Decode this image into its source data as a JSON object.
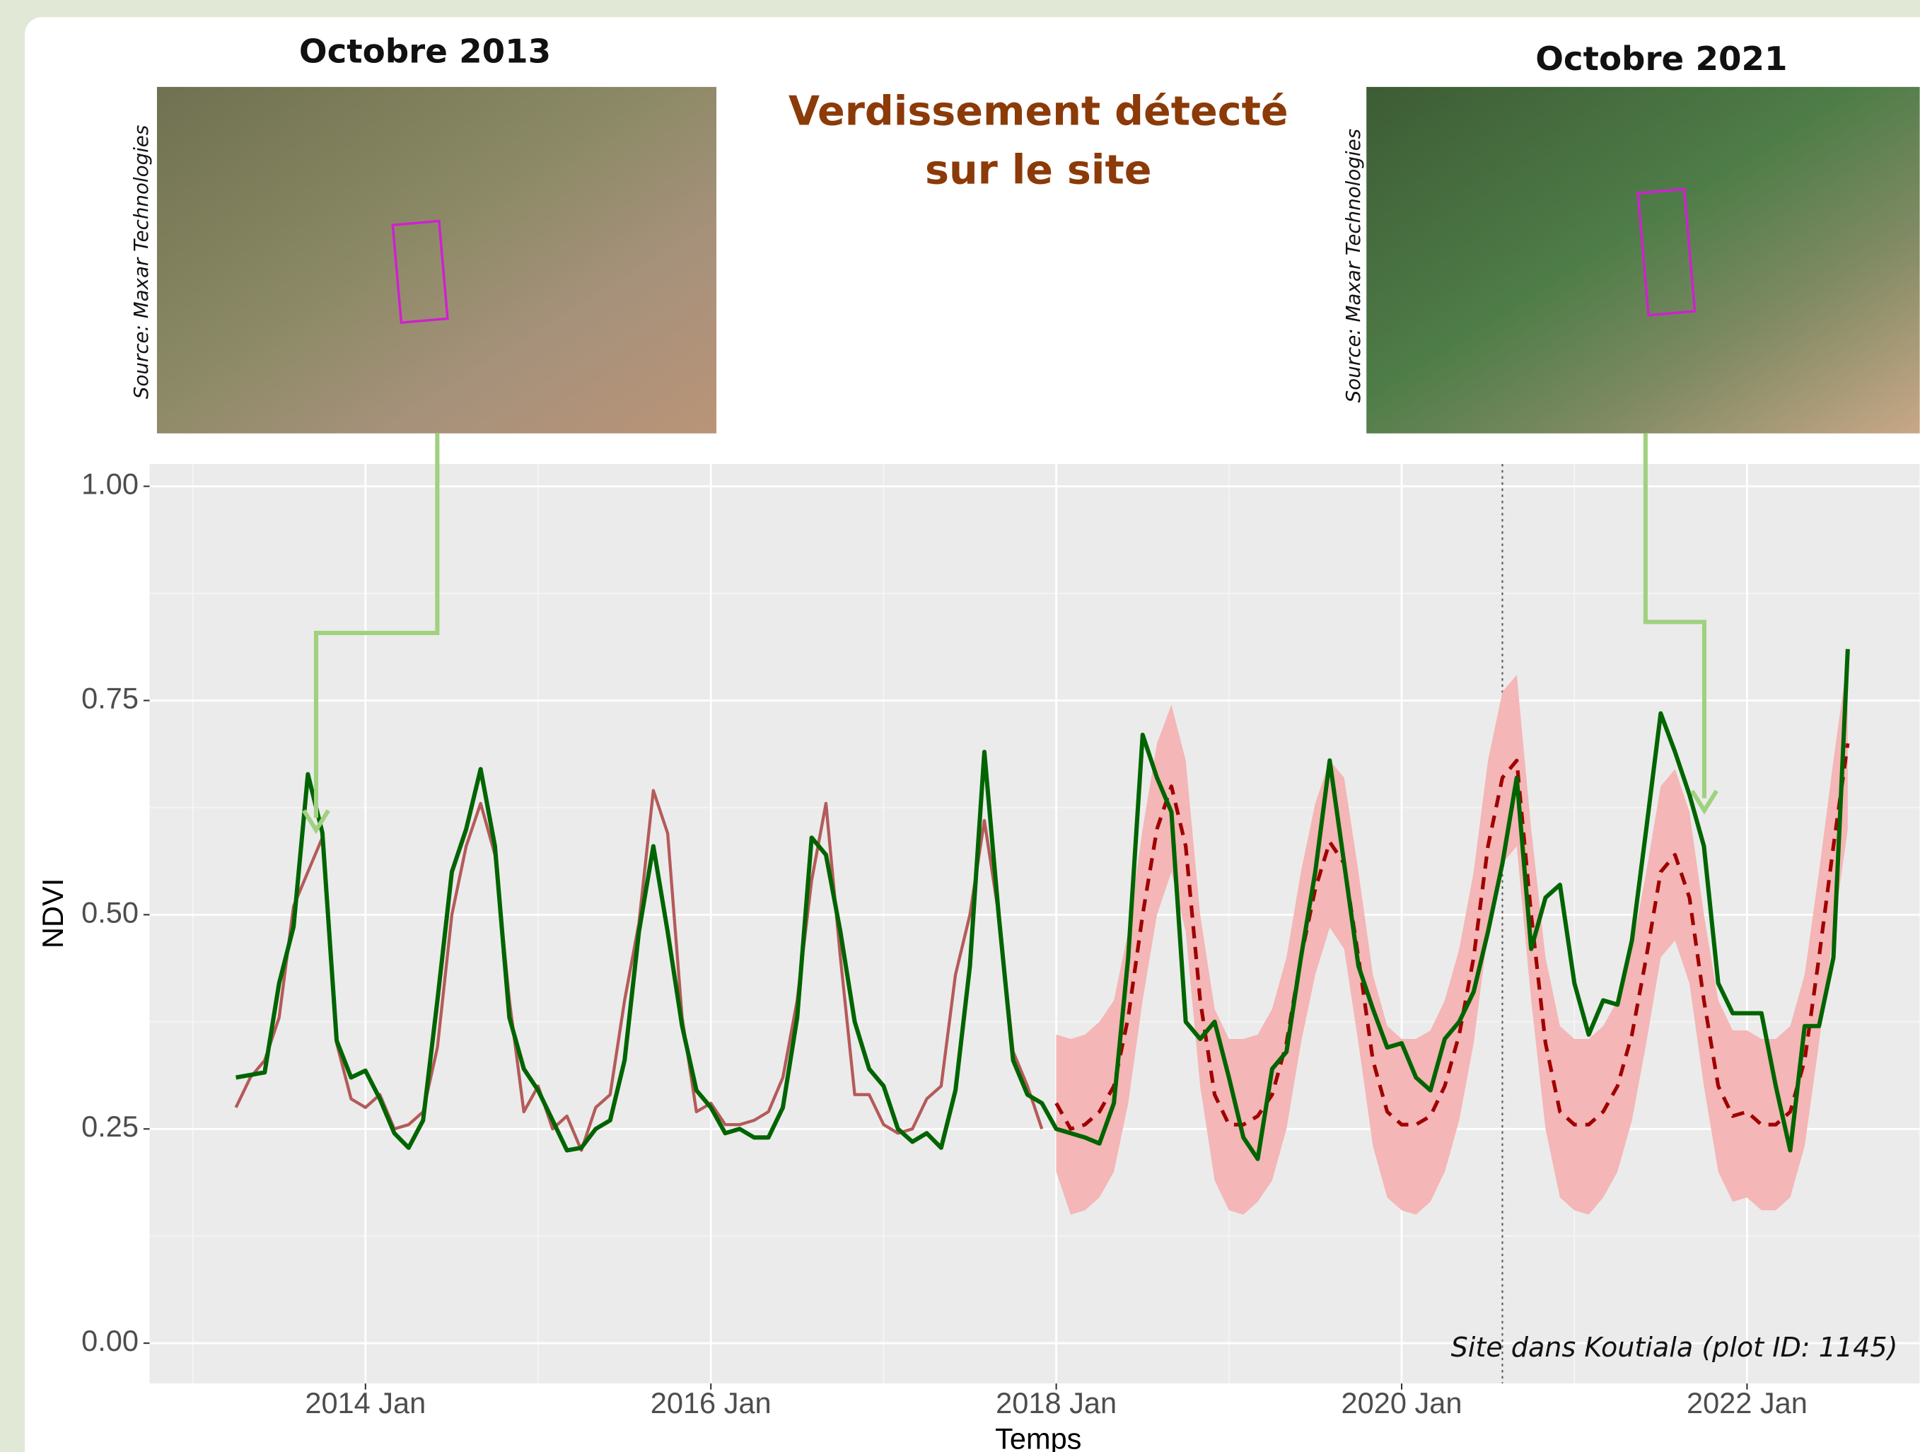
{
  "images": [
    {
      "caption": "Octobre 2013",
      "source": "Source: Maxar Technologies"
    },
    {
      "caption": "Octobre 2021",
      "source": "Source: Maxar Technologies"
    }
  ],
  "chart_data": {
    "type": "line",
    "title": [
      "Verdissement détecté",
      "sur le site"
    ],
    "xlabel": "Temps",
    "ylabel": "NDVI",
    "note": "Site dans Koutiala (plot ID: 1145)",
    "x": [
      "2013-04",
      "2013-05",
      "2013-06",
      "2013-07",
      "2013-08",
      "2013-09",
      "2013-10",
      "2013-11",
      "2013-12",
      "2014-01",
      "2014-02",
      "2014-03",
      "2014-04",
      "2014-05",
      "2014-06",
      "2014-07",
      "2014-08",
      "2014-09",
      "2014-10",
      "2014-11",
      "2014-12",
      "2015-01",
      "2015-02",
      "2015-03",
      "2015-04",
      "2015-05",
      "2015-06",
      "2015-07",
      "2015-08",
      "2015-09",
      "2015-10",
      "2015-11",
      "2015-12",
      "2016-01",
      "2016-02",
      "2016-03",
      "2016-04",
      "2016-05",
      "2016-06",
      "2016-07",
      "2016-08",
      "2016-09",
      "2016-10",
      "2016-11",
      "2016-12",
      "2017-01",
      "2017-02",
      "2017-03",
      "2017-04",
      "2017-05",
      "2017-06",
      "2017-07",
      "2017-08",
      "2017-09",
      "2017-10",
      "2017-11",
      "2017-12",
      "2018-01",
      "2018-02",
      "2018-03",
      "2018-04",
      "2018-05",
      "2018-06",
      "2018-07",
      "2018-08",
      "2018-09",
      "2018-10",
      "2018-11",
      "2018-12",
      "2019-01",
      "2019-02",
      "2019-03",
      "2019-04",
      "2019-05",
      "2019-06",
      "2019-07",
      "2019-08",
      "2019-09",
      "2019-10",
      "2019-11",
      "2019-12",
      "2020-01",
      "2020-02",
      "2020-03",
      "2020-04",
      "2020-05",
      "2020-06",
      "2020-07",
      "2020-08",
      "2020-09",
      "2020-10",
      "2020-11",
      "2020-12",
      "2021-01",
      "2021-02",
      "2021-03",
      "2021-04",
      "2021-05",
      "2021-06",
      "2021-07",
      "2021-08",
      "2021-09",
      "2021-10",
      "2021-11",
      "2021-12",
      "2022-01",
      "2022-02",
      "2022-03",
      "2022-04",
      "2022-05",
      "2022-06",
      "2022-07",
      "2022-08"
    ],
    "band": {
      "color": "#f4b6b6",
      "upper": [
        null,
        null,
        null,
        null,
        null,
        null,
        null,
        null,
        null,
        null,
        null,
        null,
        null,
        null,
        null,
        null,
        null,
        null,
        null,
        null,
        null,
        null,
        null,
        null,
        null,
        null,
        null,
        null,
        null,
        null,
        null,
        null,
        null,
        null,
        null,
        null,
        null,
        null,
        null,
        null,
        null,
        null,
        null,
        null,
        null,
        null,
        null,
        null,
        null,
        null,
        null,
        null,
        null,
        null,
        null,
        null,
        null,
        0.36,
        0.355,
        0.36,
        0.375,
        0.4,
        0.48,
        0.6,
        0.7,
        0.745,
        0.68,
        0.5,
        0.39,
        0.355,
        0.355,
        0.36,
        0.39,
        0.45,
        0.55,
        0.63,
        0.68,
        0.66,
        0.55,
        0.43,
        0.37,
        0.355,
        0.355,
        0.365,
        0.4,
        0.46,
        0.55,
        0.68,
        0.76,
        0.78,
        0.6,
        0.45,
        0.37,
        0.355,
        0.355,
        0.37,
        0.4,
        0.46,
        0.55,
        0.65,
        0.67,
        0.62,
        0.5,
        0.4,
        0.365,
        0.365,
        0.355,
        0.355,
        0.37,
        0.43,
        0.55,
        0.68,
        0.8
      ],
      "lower": [
        null,
        null,
        null,
        null,
        null,
        null,
        null,
        null,
        null,
        null,
        null,
        null,
        null,
        null,
        null,
        null,
        null,
        null,
        null,
        null,
        null,
        null,
        null,
        null,
        null,
        null,
        null,
        null,
        null,
        null,
        null,
        null,
        null,
        null,
        null,
        null,
        null,
        null,
        null,
        null,
        null,
        null,
        null,
        null,
        null,
        null,
        null,
        null,
        null,
        null,
        null,
        null,
        null,
        null,
        null,
        null,
        null,
        0.2,
        0.15,
        0.155,
        0.17,
        0.2,
        0.28,
        0.4,
        0.5,
        0.55,
        0.48,
        0.3,
        0.19,
        0.155,
        0.15,
        0.165,
        0.19,
        0.25,
        0.35,
        0.43,
        0.485,
        0.46,
        0.35,
        0.23,
        0.17,
        0.155,
        0.15,
        0.165,
        0.2,
        0.26,
        0.35,
        0.48,
        0.56,
        0.58,
        0.4,
        0.25,
        0.17,
        0.155,
        0.15,
        0.17,
        0.2,
        0.26,
        0.35,
        0.45,
        0.47,
        0.42,
        0.3,
        0.2,
        0.165,
        0.17,
        0.155,
        0.155,
        0.17,
        0.23,
        0.35,
        0.48,
        0.6
      ]
    },
    "series": [
      {
        "color": "#b55a5a",
        "width": 2.5,
        "dash": false,
        "values": [
          0.275,
          0.31,
          0.33,
          0.38,
          0.51,
          0.55,
          0.59,
          0.35,
          0.285,
          0.275,
          0.29,
          0.25,
          0.255,
          0.27,
          0.345,
          0.5,
          0.58,
          0.63,
          0.57,
          0.4,
          0.27,
          0.3,
          0.25,
          0.265,
          0.225,
          0.275,
          0.29,
          0.4,
          0.49,
          0.645,
          0.595,
          0.38,
          0.27,
          0.28,
          0.255,
          0.255,
          0.26,
          0.27,
          0.31,
          0.4,
          0.54,
          0.63,
          0.45,
          0.29,
          0.29,
          0.255,
          0.245,
          0.25,
          0.285,
          0.3,
          0.43,
          0.5,
          0.61,
          0.5,
          0.34,
          0.3,
          0.25,
          null,
          null,
          null,
          null,
          null,
          null,
          null,
          null,
          null,
          null,
          null,
          null,
          null,
          null,
          null,
          null,
          null,
          null,
          null,
          null,
          null,
          null,
          null,
          null,
          null,
          null,
          null,
          null,
          null,
          null,
          null,
          null,
          null,
          null,
          null,
          null,
          null,
          null,
          null,
          null,
          null,
          null,
          null,
          null,
          null,
          null,
          null,
          null,
          null,
          null,
          null,
          null,
          null,
          null,
          null,
          null
        ]
      },
      {
        "color": "#a00000",
        "width": 3,
        "dash": true,
        "values": [
          null,
          null,
          null,
          null,
          null,
          null,
          null,
          null,
          null,
          null,
          null,
          null,
          null,
          null,
          null,
          null,
          null,
          null,
          null,
          null,
          null,
          null,
          null,
          null,
          null,
          null,
          null,
          null,
          null,
          null,
          null,
          null,
          null,
          null,
          null,
          null,
          null,
          null,
          null,
          null,
          null,
          null,
          null,
          null,
          null,
          null,
          null,
          null,
          null,
          null,
          null,
          null,
          null,
          null,
          null,
          null,
          null,
          0.28,
          0.25,
          0.255,
          0.27,
          0.3,
          0.38,
          0.5,
          0.6,
          0.65,
          0.58,
          0.4,
          0.29,
          0.255,
          0.255,
          0.265,
          0.29,
          0.35,
          0.45,
          0.53,
          0.585,
          0.56,
          0.45,
          0.33,
          0.27,
          0.255,
          0.255,
          0.265,
          0.3,
          0.36,
          0.45,
          0.58,
          0.66,
          0.68,
          0.5,
          0.35,
          0.27,
          0.255,
          0.255,
          0.27,
          0.3,
          0.36,
          0.45,
          0.55,
          0.57,
          0.52,
          0.4,
          0.3,
          0.265,
          0.27,
          0.255,
          0.255,
          0.27,
          0.33,
          0.45,
          0.58,
          0.7
        ]
      },
      {
        "color": "#006400",
        "width": 3.5,
        "dash": false,
        "values": [
          0.31,
          0.313,
          0.316,
          0.42,
          0.486,
          0.664,
          0.596,
          0.353,
          0.31,
          0.318,
          0.285,
          0.245,
          0.228,
          0.26,
          0.4,
          0.55,
          0.6,
          0.67,
          0.58,
          0.38,
          0.32,
          0.295,
          0.26,
          0.225,
          0.228,
          0.25,
          0.26,
          0.33,
          0.48,
          0.58,
          0.48,
          0.37,
          0.295,
          0.275,
          0.245,
          0.25,
          0.24,
          0.24,
          0.275,
          0.38,
          0.59,
          0.57,
          0.48,
          0.375,
          0.32,
          0.3,
          0.25,
          0.235,
          0.245,
          0.228,
          0.295,
          0.44,
          0.69,
          0.5,
          0.33,
          0.29,
          0.28,
          0.25,
          0.245,
          0.24,
          0.233,
          0.28,
          0.45,
          0.71,
          0.66,
          0.62,
          0.375,
          0.355,
          0.375,
          0.31,
          0.24,
          0.215,
          0.32,
          0.34,
          0.45,
          0.55,
          0.68,
          0.56,
          0.44,
          0.39,
          0.345,
          0.35,
          0.31,
          0.295,
          0.355,
          0.375,
          0.41,
          0.48,
          0.56,
          0.66,
          0.46,
          0.52,
          0.535,
          0.42,
          0.36,
          0.4,
          0.395,
          0.47,
          0.6,
          0.735,
          0.69,
          0.64,
          0.58,
          0.42,
          0.385,
          0.385,
          0.385,
          0.3,
          0.225,
          0.37,
          0.37,
          0.45,
          0.81
        ]
      }
    ],
    "xlim": [
      "2012-10",
      "2023-01"
    ],
    "xticks": [
      {
        "value": "2014-01",
        "label": "2014 Jan"
      },
      {
        "value": "2016-01",
        "label": "2016 Jan"
      },
      {
        "value": "2018-01",
        "label": "2018 Jan"
      },
      {
        "value": "2020-01",
        "label": "2020 Jan"
      },
      {
        "value": "2022-01",
        "label": "2022 Jan"
      }
    ],
    "minor_xticks": [
      "2013-01",
      "2015-01",
      "2017-01",
      "2019-01",
      "2021-01",
      "2023-01"
    ],
    "ylim": [
      -0.047,
      1.026
    ],
    "yticks": [
      {
        "value": 0,
        "label": "0.00"
      },
      {
        "value": 0.25,
        "label": "0.25"
      },
      {
        "value": 0.5,
        "label": "0.50"
      },
      {
        "value": 0.75,
        "label": "0.75"
      },
      {
        "value": 1,
        "label": "1.00"
      }
    ],
    "minor_yticks": [
      0.125,
      0.375,
      0.625,
      0.875
    ],
    "vline": "2020-08",
    "grid": true
  }
}
